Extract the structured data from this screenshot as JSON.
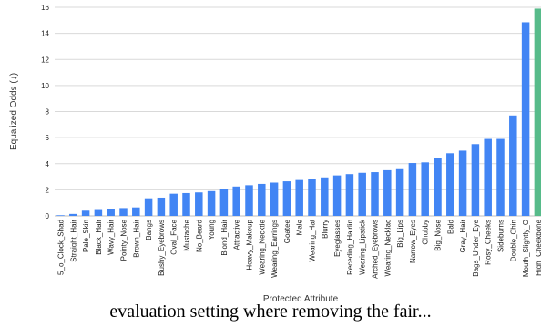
{
  "chart_data": {
    "type": "bar",
    "xlabel": "Protected Attribute",
    "ylabel": "Equalized Odds (↓)",
    "ylim": [
      0,
      16
    ],
    "yticks": [
      0,
      2,
      4,
      6,
      8,
      10,
      12,
      14,
      16
    ],
    "grid": "horizontal",
    "colors": {
      "bar": "#4285f4",
      "highlight": "#57bb8a",
      "grid": "#d9d9d9"
    },
    "categories": [
      "5_o_Clock_Shad",
      "Straight_Hair",
      "Pale_Skin",
      "Black_Hair",
      "Wavy_Hair",
      "Pointy_Nose",
      "Brown_Hair",
      "Bangs",
      "Bushy_Eyebrows",
      "Oval_Face",
      "Mustache",
      "No_Beard",
      "Young",
      "Blond_Hair",
      "Attractive",
      "Heavy_Makeup",
      "Wearing_Necktie",
      "Wearing_Earrings",
      "Goatee",
      "Male",
      "Wearing_Hat",
      "Blurry",
      "Eyeglasses",
      "Receding_Hairlin",
      "Wearing_Lipstick",
      "Arched_Eyebrows",
      "Wearing_Necklac",
      "Big_Lips",
      "Narrow_Eyes",
      "Chubby",
      "Big_Nose",
      "Bald",
      "Gray_Hair",
      "Bags_Under_Eye",
      "Rosy_Cheeks",
      "Sideburns",
      "Double_Chin",
      "Mouth_Slightly_O",
      "High_Cheekbone"
    ],
    "values": [
      0.05,
      0.15,
      0.4,
      0.45,
      0.5,
      0.6,
      0.65,
      1.35,
      1.4,
      1.7,
      1.75,
      1.8,
      1.9,
      2.05,
      2.25,
      2.35,
      2.45,
      2.55,
      2.65,
      2.75,
      2.85,
      2.95,
      3.1,
      3.2,
      3.3,
      3.35,
      3.5,
      3.65,
      4.05,
      4.1,
      4.45,
      4.8,
      5.0,
      5.5,
      5.9,
      5.9,
      7.7,
      14.85,
      15.9
    ],
    "highlight_index": 38
  },
  "caption": "evaluation setting where removing the fair..."
}
